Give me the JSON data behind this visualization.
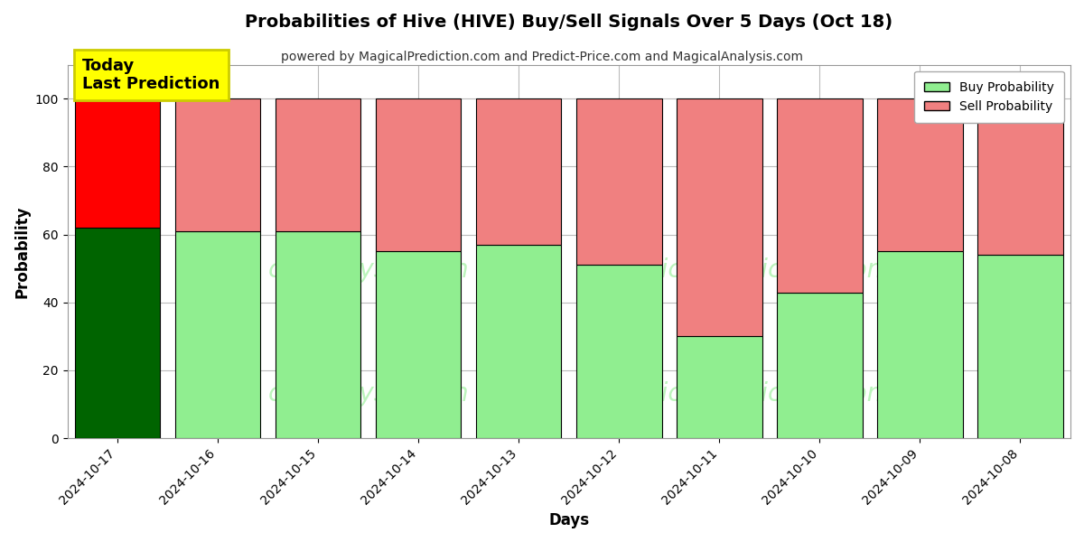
{
  "title": "Probabilities of Hive (HIVE) Buy/Sell Signals Over 5 Days (Oct 18)",
  "subtitle": "powered by MagicalPrediction.com and Predict-Price.com and MagicalAnalysis.com",
  "xlabel": "Days",
  "ylabel": "Probability",
  "categories": [
    "2024-10-17",
    "2024-10-16",
    "2024-10-15",
    "2024-10-14",
    "2024-10-13",
    "2024-10-12",
    "2024-10-11",
    "2024-10-10",
    "2024-10-09",
    "2024-10-08"
  ],
  "buy_values": [
    62,
    61,
    61,
    55,
    57,
    51,
    30,
    43,
    55,
    54
  ],
  "sell_values": [
    38,
    39,
    39,
    45,
    43,
    49,
    70,
    57,
    45,
    46
  ],
  "buy_color_today": "#006400",
  "sell_color_today": "#ff0000",
  "buy_color_normal": "#90ee90",
  "sell_color_normal": "#f08080",
  "bar_edge_color": "#000000",
  "ylim": [
    0,
    110
  ],
  "yticks": [
    0,
    20,
    40,
    60,
    80,
    100
  ],
  "dashed_line_y": 110,
  "watermark_text1": "calAnalysis.com",
  "watermark_text2": "MagicalPrediction.com",
  "annotation_text": "Today\nLast Prediction",
  "annotation_bg": "#ffff00",
  "legend_buy_label": "Buy Probability",
  "legend_sell_label": "Sell Probability",
  "background_color": "#ffffff",
  "grid_color": "#bbbbbb",
  "fig_width": 12.0,
  "fig_height": 6.0,
  "bar_width": 0.85
}
